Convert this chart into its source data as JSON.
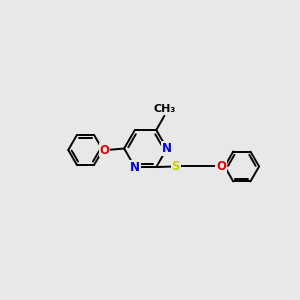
{
  "background_color": "#e8e8e8",
  "atom_colors": {
    "N": "#0000ee",
    "O": "#ee0000",
    "S": "#cccc00"
  },
  "bond_color": "#000000",
  "bond_width": 1.4,
  "font_size": 8.5
}
